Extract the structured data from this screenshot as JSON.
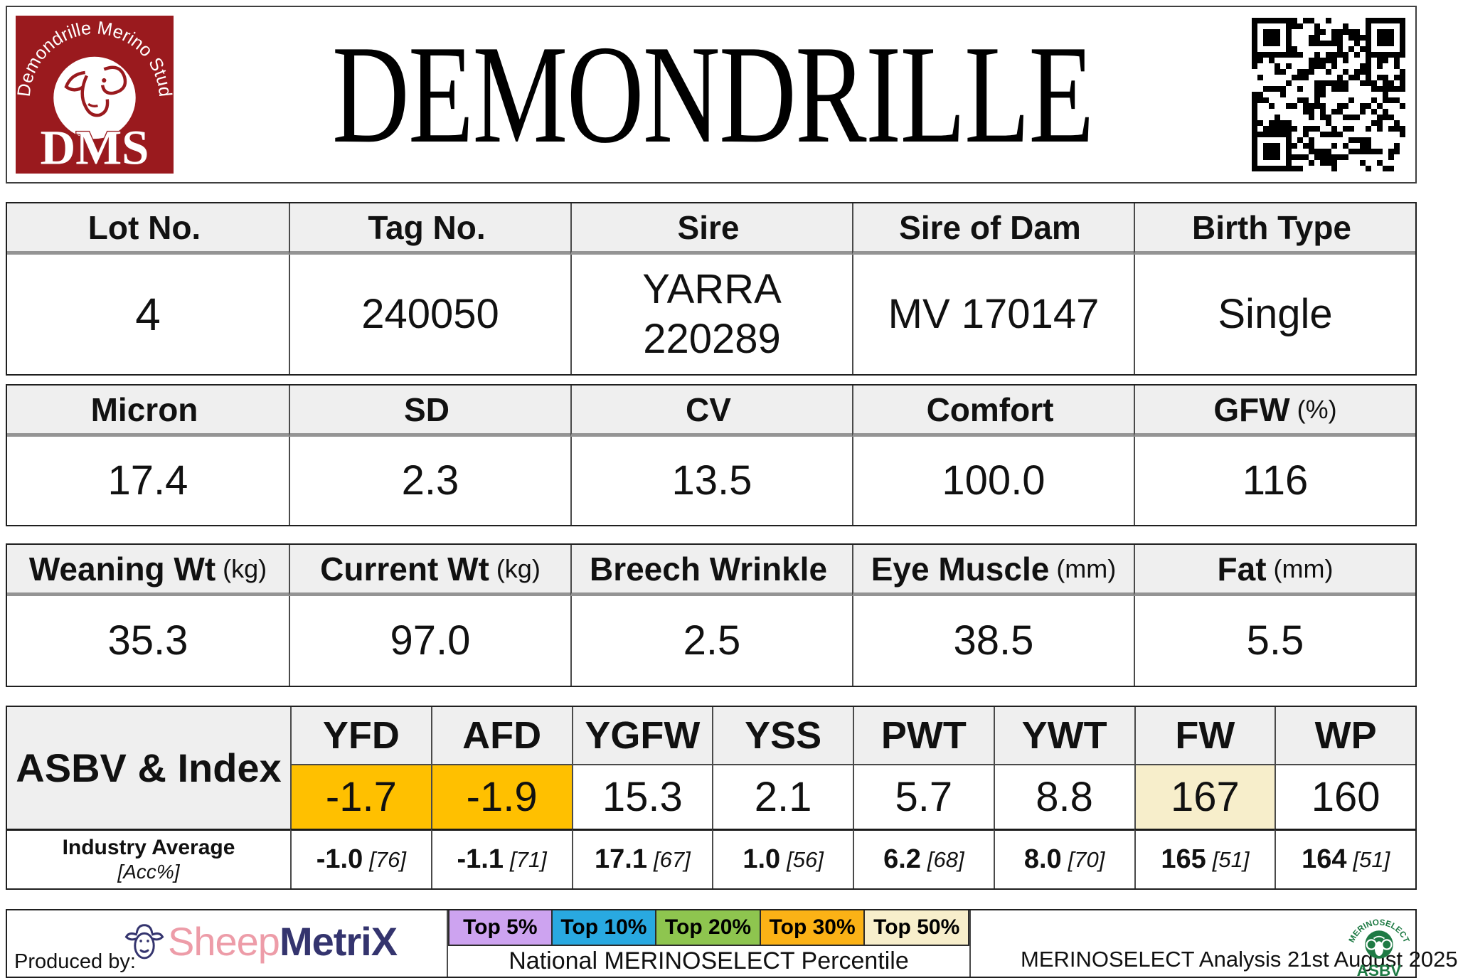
{
  "header": {
    "title": "DEMONDRILLE",
    "logo": {
      "arc_text": "Demondrille Merino Stud",
      "initials": "DMS",
      "bg_color": "#9A1A1E"
    }
  },
  "info_table": {
    "headers": [
      {
        "label": "Lot No.",
        "unit": ""
      },
      {
        "label": "Tag No.",
        "unit": ""
      },
      {
        "label": "Sire",
        "unit": ""
      },
      {
        "label": "Sire of Dam",
        "unit": ""
      },
      {
        "label": "Birth Type",
        "unit": ""
      }
    ],
    "values": [
      [
        "4"
      ],
      [
        "240050"
      ],
      [
        "YARRA",
        "220289"
      ],
      [
        "MV 170147"
      ],
      [
        "Single"
      ]
    ]
  },
  "wool_table": {
    "headers": [
      {
        "label": "Micron",
        "unit": ""
      },
      {
        "label": "SD",
        "unit": ""
      },
      {
        "label": "CV",
        "unit": ""
      },
      {
        "label": "Comfort",
        "unit": ""
      },
      {
        "label": "GFW",
        "unit": "(%)"
      }
    ],
    "values": [
      "17.4",
      "2.3",
      "13.5",
      "100.0",
      "116"
    ]
  },
  "body_table": {
    "headers": [
      {
        "label": "Weaning Wt",
        "unit": "(kg)"
      },
      {
        "label": "Current Wt",
        "unit": "(kg)"
      },
      {
        "label": "Breech Wrinkle",
        "unit": ""
      },
      {
        "label": "Eye Muscle",
        "unit": "(mm)"
      },
      {
        "label": "Fat",
        "unit": "(mm)"
      }
    ],
    "values": [
      "35.3",
      "97.0",
      "2.5",
      "38.5",
      "5.5"
    ]
  },
  "asbv_table": {
    "row_label": "ASBV & Index",
    "industry_label": "Industry Average",
    "acc_label": "[Acc%]",
    "highlight_colors": {
      "top30": "#FFC000",
      "top50": "#F7EECB",
      "none": "#FFFFFF"
    },
    "columns": [
      {
        "name": "YFD",
        "value": "-1.7",
        "highlight": "#FFC000",
        "industry": "-1.0",
        "acc": "[76]"
      },
      {
        "name": "AFD",
        "value": "-1.9",
        "highlight": "#FFC000",
        "industry": "-1.1",
        "acc": "[71]"
      },
      {
        "name": "YGFW",
        "value": "15.3",
        "highlight": "#FFFFFF",
        "industry": "17.1",
        "acc": "[67]"
      },
      {
        "name": "YSS",
        "value": "2.1",
        "highlight": "#FFFFFF",
        "industry": "1.0",
        "acc": "[56]"
      },
      {
        "name": "PWT",
        "value": "5.7",
        "highlight": "#FFFFFF",
        "industry": "6.2",
        "acc": "[68]"
      },
      {
        "name": "YWT",
        "value": "8.8",
        "highlight": "#FFFFFF",
        "industry": "8.0",
        "acc": "[70]"
      },
      {
        "name": "FW",
        "value": "167",
        "highlight": "#F7EECB",
        "industry": "165",
        "acc": "[51]"
      },
      {
        "name": "WP",
        "value": "160",
        "highlight": "#FFFFFF",
        "industry": "164",
        "acc": "[51]"
      }
    ]
  },
  "footer": {
    "produced_by": "Produced by:",
    "sheepmetrix": {
      "part1": "Sheep",
      "part2": "MetriX",
      "color1": "#ED9CA8",
      "color2": "#34346E"
    },
    "legend": {
      "items": [
        {
          "label": "Top 5%",
          "color": "#CDA3F0"
        },
        {
          "label": "Top 10%",
          "color": "#29A9E1"
        },
        {
          "label": "Top 20%",
          "color": "#8EC54F"
        },
        {
          "label": "Top 30%",
          "color": "#FBB216"
        },
        {
          "label": "Top 50%",
          "color": "#F7EECB"
        }
      ],
      "caption": "National MERINOSELECT Percentile"
    },
    "analysis": "MERINOSELECT Analysis 21st August 2025",
    "merinoselect_logo": {
      "arc_text": "MERINOSELECT",
      "label": "ASBV",
      "color": "#1E7A44"
    }
  }
}
